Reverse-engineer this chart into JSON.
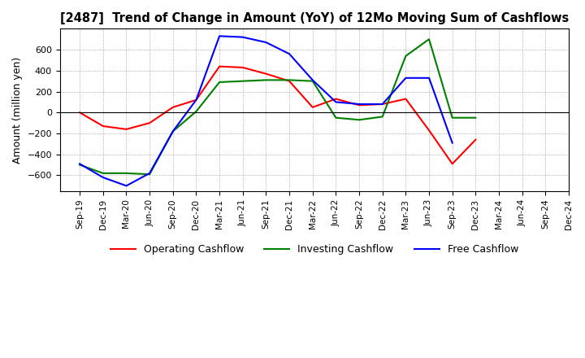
{
  "title": "[2487]  Trend of Change in Amount (YoY) of 12Mo Moving Sum of Cashflows",
  "ylabel": "Amount (million yen)",
  "xlabels": [
    "Sep-19",
    "Dec-19",
    "Mar-20",
    "Jun-20",
    "Sep-20",
    "Dec-20",
    "Mar-21",
    "Jun-21",
    "Sep-21",
    "Dec-21",
    "Mar-22",
    "Jun-22",
    "Sep-22",
    "Dec-22",
    "Mar-23",
    "Jun-23",
    "Sep-23",
    "Dec-23",
    "Mar-24",
    "Jun-24",
    "Sep-24",
    "Dec-24"
  ],
  "operating": [
    0,
    -130,
    -160,
    -100,
    50,
    120,
    440,
    430,
    370,
    300,
    50,
    130,
    70,
    80,
    130,
    -170,
    -490,
    -260,
    null,
    null,
    null,
    null
  ],
  "investing": [
    -500,
    -580,
    -580,
    -590,
    -180,
    10,
    290,
    300,
    310,
    310,
    300,
    -50,
    -70,
    -40,
    540,
    700,
    -50,
    -50,
    null,
    null,
    null,
    null
  ],
  "free": [
    -490,
    -620,
    -700,
    -580,
    -180,
    120,
    730,
    720,
    670,
    560,
    310,
    100,
    80,
    80,
    330,
    330,
    -290,
    null,
    null,
    null,
    null,
    null
  ],
  "operating_color": "#ff0000",
  "investing_color": "#008000",
  "free_color": "#0000ff",
  "ylim": [
    -750,
    800
  ],
  "yticks": [
    -600,
    -400,
    -200,
    0,
    200,
    400,
    600
  ],
  "grid": true
}
